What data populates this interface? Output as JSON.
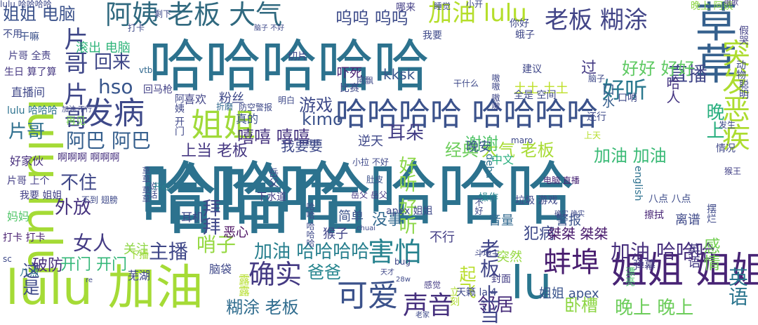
{
  "words": [
    {
      "text": "哈哈哈哈哈",
      "color": "#2c728e"
    },
    {
      "text": "哈哈哈 哈哈哈",
      "color": "#2c728e"
    },
    {
      "text": "lulu lulu",
      "color": "#a5db36"
    },
    {
      "text": "lulu 加油",
      "color": "#a5db36"
    },
    {
      "text": "哈哈哈哈 哈哈哈哈",
      "color": "#3b528b"
    },
    {
      "text": "草草",
      "color": "#35608d"
    },
    {
      "text": "突发恶疾",
      "color": "#addc30"
    },
    {
      "text": "发病",
      "color": "#3e4989"
    },
    {
      "text": "姐姐",
      "color": "#a0da39"
    },
    {
      "text": "姐姐 姐姐",
      "color": "#482475"
    },
    {
      "text": "阿姨 老板 大气",
      "color": "#30697f"
    },
    {
      "text": "老板 糊涂",
      "color": "#414487"
    },
    {
      "text": "加油 lulu",
      "color": "#b5de2b"
    },
    {
      "text": "好听",
      "color": "#2a788e"
    },
    {
      "text": "直播",
      "color": "#404688"
    },
    {
      "text": "呜呜 呜呜",
      "color": "#3e4c8a"
    },
    {
      "text": "lu",
      "color": "#2a768e"
    },
    {
      "text": "蚌埠",
      "color": "#481d6f"
    },
    {
      "text": "可爱",
      "color": "#3b528b"
    },
    {
      "text": "害怕",
      "color": "#26828e"
    },
    {
      "text": "确实",
      "color": "#443a83"
    },
    {
      "text": "声音",
      "color": "#46307e"
    },
    {
      "text": "加油 哈哈哈",
      "color": "#472f7d"
    },
    {
      "text": "加油 哈哈哈哈",
      "color": "#277f8e"
    },
    {
      "text": "片哥",
      "color": "#2e6f8e"
    },
    {
      "text": "片哥 片哥",
      "color": "#3f4788"
    },
    {
      "text": "阿巴 阿巴",
      "color": "#355f8d"
    },
    {
      "text": "主播",
      "color": "#3f4788"
    },
    {
      "text": "女人",
      "color": "#443b84"
    },
    {
      "text": "哨子",
      "color": "#95d840"
    },
    {
      "text": "嘻嘻 嘻嘻",
      "color": "#46337f"
    },
    {
      "text": "耳朵",
      "color": "#433e85"
    },
    {
      "text": "kimo",
      "color": "#3b528b"
    },
    {
      "text": "姐姐 电脑",
      "color": "#3b528b"
    },
    {
      "text": "哈哈哈",
      "color": "#2c728e"
    },
    {
      "text": "好好 好好",
      "color": "#5ec962"
    },
    {
      "text": "晚上 晚上",
      "color": "#6ccd5a"
    },
    {
      "text": "大气 老板",
      "color": "#a8db34"
    },
    {
      "text": "糊涂 老板",
      "color": "#2f6c8e"
    },
    {
      "text": "爸爸",
      "color": "#25858e"
    },
    {
      "text": "卧槽",
      "color": "#8ed645"
    },
    {
      "text": "英语",
      "color": "#2b758e"
    },
    {
      "text": "邻居",
      "color": "#472c7a"
    },
    {
      "text": "起飞",
      "color": "#b8de29"
    },
    {
      "text": "老板 上当",
      "color": "#404588"
    },
    {
      "text": "加油 加油",
      "color": "#3aba76"
    },
    {
      "text": "晚上",
      "color": "#29af7f"
    },
    {
      "text": "谢谢",
      "color": "#52c569"
    },
    {
      "text": "经典",
      "color": "#6ccd5a"
    },
    {
      "text": "游戏",
      "color": "#3e4a89"
    },
    {
      "text": "hso",
      "color": "#39568c"
    },
    {
      "text": "回来",
      "color": "#3f4788"
    },
    {
      "text": "不住",
      "color": "#3f4788"
    },
    {
      "text": "外放",
      "color": "#46327e"
    },
    {
      "text": "破防",
      "color": "#472d7b"
    },
    {
      "text": "开门 开门",
      "color": "#35b779"
    },
    {
      "text": "好听 好听",
      "color": "#8bd646"
    },
    {
      "text": "上当 老板",
      "color": "#453781"
    },
    {
      "text": "粉丝",
      "color": "#3e4989"
    },
    {
      "text": "过",
      "color": "#443b84"
    },
    {
      "text": "口水",
      "color": "#355e8d"
    },
    {
      "text": "哈人",
      "color": "#453581"
    },
    {
      "text": "土土 土土",
      "color": "#bddf26"
    },
    {
      "text": "这是",
      "color": "#3e4989"
    },
    {
      "text": "犯病",
      "color": "#3e4989"
    },
    {
      "text": "没事",
      "color": "#31688e"
    },
    {
      "text": "恶心",
      "color": "#460b5e"
    },
    {
      "text": "拜拜",
      "color": "#3f4788"
    },
    {
      "text": "突然",
      "color": "#95d840"
    },
    {
      "text": "感情",
      "color": "#75d054"
    },
    {
      "text": "弹幕",
      "color": "#433e85"
    },
    {
      "text": "桀桀 桀桀",
      "color": "#481a6c"
    },
    {
      "text": "警报",
      "color": "#3b518b"
    },
    {
      "text": "离谱",
      "color": "#3e4989"
    },
    {
      "text": "真的",
      "color": "#3b518b"
    },
    {
      "text": "喜欢",
      "color": "#414487"
    },
    {
      "text": "英语",
      "color": "#443a83"
    },
    {
      "text": "逆天",
      "color": "#3f4889"
    },
    {
      "text": "晚安",
      "color": "#39568c"
    },
    {
      "text": "简单",
      "color": "#3b528b"
    },
    {
      "text": "猴子",
      "color": "#414487"
    },
    {
      "text": "耳机",
      "color": "#3e4989"
    },
    {
      "text": "关注",
      "color": "#8ed645"
    },
    {
      "text": "下播",
      "color": "#a0da39"
    },
    {
      "text": "脑袋",
      "color": "#3f4889"
    },
    {
      "text": "不行",
      "color": "#433e85"
    },
    {
      "text": "音量",
      "color": "#31688e"
    },
    {
      "text": "操作",
      "color": "#25848e"
    },
    {
      "text": "漂亮",
      "color": "#4ac16d"
    },
    {
      "text": "擦拭",
      "color": "#482576"
    },
    {
      "text": "姐姐 apex",
      "color": "#3a548c"
    },
    {
      "text": "立刻",
      "color": "#b0dd2f"
    },
    {
      "text": "天才",
      "color": "#3f4788"
    },
    {
      "text": "感觉",
      "color": "#443b84"
    },
    {
      "text": "封面",
      "color": "#433e85"
    },
    {
      "text": "中文",
      "color": "#29af7f"
    },
    {
      "text": "猴王",
      "color": "#424086"
    },
    {
      "text": "吓死",
      "color": "#482173"
    },
    {
      "text": "kksk",
      "color": "#39568c"
    },
    {
      "text": "vtb",
      "color": "#31688e"
    },
    {
      "text": "滚出 电脑",
      "color": "#31b57b"
    },
    {
      "text": "片哥 全责",
      "color": "#433e85"
    },
    {
      "text": "生日 算了算",
      "color": "#453781"
    },
    {
      "text": "直播间",
      "color": "#3f4788"
    },
    {
      "text": "回马枪",
      "color": "#424086"
    },
    {
      "text": "好家伙",
      "color": "#472f7d"
    },
    {
      "text": "片哥 上个",
      "color": "#433e85"
    },
    {
      "text": "我要 姐姐",
      "color": "#424086"
    },
    {
      "text": "妈妈",
      "color": "#52c569"
    },
    {
      "text": "打卡 打卡",
      "color": "#481f70"
    },
    {
      "text": "八点",
      "color": "#2a788e"
    },
    {
      "text": "露露",
      "color": "#b5de2b"
    },
    {
      "text": "lulu 哈哈哈",
      "color": "#2c728e"
    },
    {
      "text": "加油 不行",
      "color": "#3f4788"
    },
    {
      "text": "再见",
      "color": "#75d054"
    },
    {
      "text": "不用",
      "color": "#3e4a89"
    },
    {
      "text": "干嘛",
      "color": "#3b528b"
    },
    {
      "text": "下水道",
      "color": "#433e85"
    },
    {
      "text": "岳父 岳父",
      "color": "#453882"
    },
    {
      "text": "电脑 直播",
      "color": "#482475"
    },
    {
      "text": "垃圾 游戏",
      "color": "#3f4889"
    },
    {
      "text": "八点 八点",
      "color": "#3e4c8a"
    },
    {
      "text": "english",
      "color": "#2d718e"
    },
    {
      "text": "debu",
      "color": "#2c738e"
    },
    {
      "text": "肚皮",
      "color": "#3b528b"
    },
    {
      "text": "晚上 阿姨",
      "color": "#8ed645"
    },
    {
      "text": "脑子",
      "color": "#3e4989"
    },
    {
      "text": "切片",
      "color": "#3f4788"
    },
    {
      "text": "哪来",
      "color": "#433e85"
    },
    {
      "text": "唱歌",
      "color": "#453882"
    },
    {
      "text": "你好",
      "color": "#3e4989"
    },
    {
      "text": "蛾子",
      "color": "#3f4788"
    },
    {
      "text": "建议",
      "color": "#3f4788"
    },
    {
      "text": "假哭",
      "color": "#424086"
    },
    {
      "text": "动物",
      "color": "#3e4989"
    },
    {
      "text": "聪明",
      "color": "#3e4989"
    },
    {
      "text": "情况",
      "color": "#3f4788"
    },
    {
      "text": "发生",
      "color": "#3e4989"
    },
    {
      "text": "上天",
      "color": "#b5de2b"
    },
    {
      "text": "还行",
      "color": "#3e4989"
    },
    {
      "text": "口哨",
      "color": "#3e4989"
    },
    {
      "text": "阿姨 开门",
      "color": "#3f4788"
    },
    {
      "text": "明白",
      "color": "#3e4989"
    },
    {
      "text": "折磨",
      "color": "#31688e"
    },
    {
      "text": "防空警报",
      "color": "#3e4989"
    },
    {
      "text": "嗷嗷 嗷嗷",
      "color": "#3f4788"
    },
    {
      "text": "全是 空间",
      "color": "#3e4989"
    },
    {
      "text": "我要要",
      "color": "#3e4989"
    },
    {
      "text": "啊啊啊 啊啊啊",
      "color": "#46307e"
    },
    {
      "text": "草草 草草",
      "color": "#3e4c8a"
    },
    {
      "text": "说话",
      "color": "#3e4989"
    },
    {
      "text": "开心",
      "color": "#26828e"
    },
    {
      "text": "岳父",
      "color": "#3e4989"
    },
    {
      "text": "芜湖",
      "color": "#3f4788"
    },
    {
      "text": "不到 翅膀",
      "color": "#3e4989"
    },
    {
      "text": "老家",
      "color": "#3e4989"
    },
    {
      "text": "天籁 lai4",
      "color": "#3e4989"
    },
    {
      "text": "bug",
      "color": "#3f4788"
    },
    {
      "text": "斗地主",
      "color": "#3f4788"
    },
    {
      "text": "摆烂",
      "color": "#3e4989"
    },
    {
      "text": "小拉 不好",
      "color": "#3e4989"
    },
    {
      "text": "我超",
      "color": "#3e4989"
    },
    {
      "text": "maro",
      "color": "#3e4989"
    },
    {
      "text": "apex 姐姐",
      "color": "#3e4989"
    },
    {
      "text": "sc",
      "color": "#3e4989"
    },
    {
      "text": "re",
      "color": "#3e4989"
    },
    {
      "text": "chuai",
      "color": "#3e4989"
    },
    {
      "text": "28w",
      "color": "#3e4989"
    },
    {
      "text": "阿飘",
      "color": "#3e4989"
    },
    {
      "text": "剩下",
      "color": "#3e4989"
    },
    {
      "text": "睡觉",
      "color": "#3e4989"
    },
    {
      "text": "小开",
      "color": "#3e4989"
    },
    {
      "text": "打卡",
      "color": "#3e4989"
    },
    {
      "text": "比赛",
      "color": "#3e4989"
    },
    {
      "text": "不好",
      "color": "#3e4989"
    },
    {
      "text": "哈哈 哈哈哈",
      "color": "#3e4989"
    },
    {
      "text": "确实 确实",
      "color": "#3e4989"
    },
    {
      "text": "干什么",
      "color": "#3e4989"
    },
    {
      "text": "我要",
      "color": "#3e4989"
    },
    {
      "text": "脑子 不好",
      "color": "#3e4989"
    },
    {
      "text": "lulu 哈哈哈哈",
      "color": "#3e4989"
    }
  ]
}
